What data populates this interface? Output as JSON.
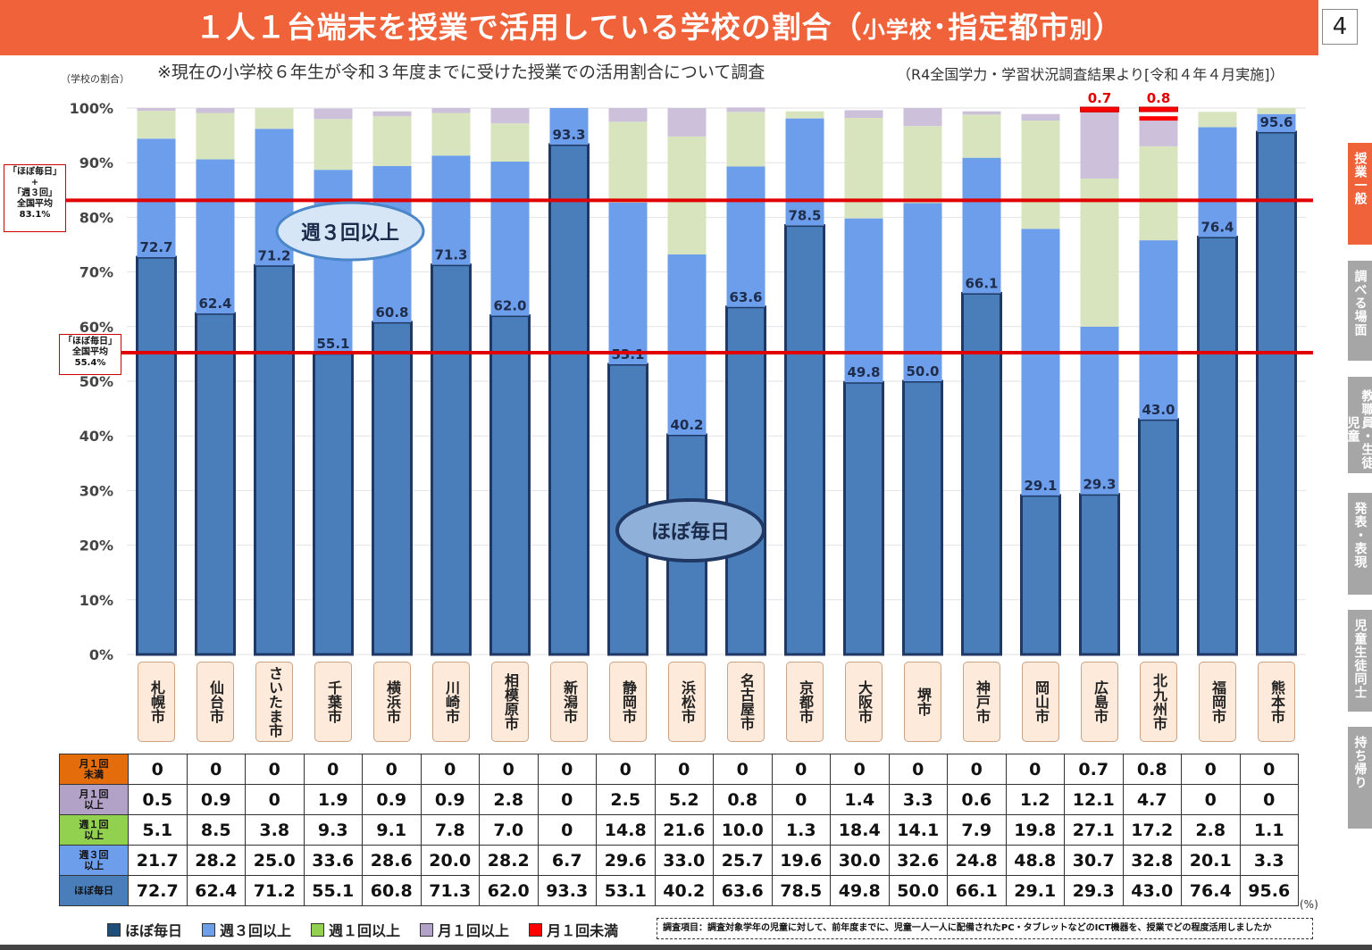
{
  "header": {
    "title_main": "１人１台端末を授業で活用している学校の割合（",
    "title_small1": "小学校",
    "title_mid": "･指定都市",
    "title_small2": "別",
    "title_end": "）",
    "page_number": "4"
  },
  "subtitle": "※現在の小学校６年生が令和３年度までに受けた授業での活用割合について調査",
  "source": "（R4全国学力・学習状況調査結果より[令和４年４月実施]）",
  "averages": {
    "combined": {
      "l1": "「ほぼ毎日」",
      "l2": "+",
      "l3": "「週３回」",
      "l4": "全国平均",
      "l5": "83.1%",
      "value": 83.1
    },
    "daily": {
      "l1": "「ほぼ毎日」",
      "l2": "全国平均",
      "l3": "55.4%",
      "value": 55.4
    }
  },
  "callouts": {
    "weekly3": "週３回以上",
    "daily": "ほぼ毎日"
  },
  "side_tabs": [
    {
      "label": "授業一般",
      "active": true
    },
    {
      "label": "調べる場面",
      "active": false
    },
    {
      "label": "教職員・生徒児童",
      "active": false
    },
    {
      "label": "発表・表現",
      "active": false
    },
    {
      "label": "児童生徒同士",
      "active": false
    },
    {
      "label": "持ち帰り",
      "active": false
    }
  ],
  "chart_data": {
    "type": "bar",
    "stacked": true,
    "ylabel": "（学校の割合）",
    "ylim": [
      0,
      100
    ],
    "yticks": [
      "0%",
      "10%",
      "20%",
      "30%",
      "40%",
      "50%",
      "60%",
      "70%",
      "80%",
      "90%",
      "100%"
    ],
    "categories": [
      "札幌市",
      "仙台市",
      "さいたま市",
      "千葉市",
      "横浜市",
      "川崎市",
      "相模原市",
      "新潟市",
      "静岡市",
      "浜松市",
      "名古屋市",
      "京都市",
      "大阪市",
      "堺市",
      "神戸市",
      "岡山市",
      "広島市",
      "北九州市",
      "福岡市",
      "熊本市"
    ],
    "series": [
      {
        "name": "ほぼ毎日",
        "color": "#4a7ebb",
        "values": [
          72.7,
          62.4,
          71.2,
          55.1,
          60.8,
          71.3,
          62.0,
          93.3,
          53.1,
          40.2,
          63.6,
          78.5,
          49.8,
          50.0,
          66.1,
          29.1,
          29.3,
          43.0,
          76.4,
          95.6
        ]
      },
      {
        "name": "週３回以上",
        "color": "#6d9eeb",
        "values": [
          21.7,
          28.2,
          25.0,
          33.6,
          28.6,
          20.0,
          28.2,
          6.7,
          29.6,
          33.0,
          25.7,
          19.6,
          30.0,
          32.6,
          24.8,
          48.8,
          30.7,
          32.8,
          20.1,
          3.3
        ]
      },
      {
        "name": "週１回以上",
        "color": "#d7e4bd",
        "values": [
          5.1,
          8.5,
          3.8,
          9.3,
          9.1,
          7.8,
          7.0,
          0,
          14.8,
          21.6,
          10.0,
          1.3,
          18.4,
          14.1,
          7.9,
          19.8,
          27.1,
          17.2,
          2.8,
          1.1
        ]
      },
      {
        "name": "月１回以上",
        "color": "#ccc0da",
        "values": [
          0.5,
          0.9,
          0,
          1.9,
          0.9,
          0.9,
          2.8,
          0,
          2.5,
          5.2,
          0.8,
          0,
          1.4,
          3.3,
          0.6,
          1.2,
          12.1,
          4.7,
          0,
          0
        ]
      },
      {
        "name": "月１回未満",
        "color": "#ff0000",
        "values": [
          0,
          0,
          0,
          0,
          0,
          0,
          0,
          0,
          0,
          0,
          0,
          0,
          0,
          0,
          0,
          0,
          0.7,
          0.8,
          0,
          0
        ]
      }
    ],
    "top_labels": {
      "16": "0.7",
      "17": "0.8"
    }
  },
  "table": {
    "row_headers": [
      {
        "l1": "月１回",
        "l2": "未満",
        "color": "#e46c0a"
      },
      {
        "l1": "月１回",
        "l2": "以上",
        "color": "#b3a2c7"
      },
      {
        "l1": "週１回",
        "l2": "以上",
        "color": "#92d050"
      },
      {
        "l1": "週３回",
        "l2": "以上",
        "color": "#6d9eeb"
      },
      {
        "l1": "ほぼ毎日",
        "l2": "",
        "color": "#4a7ebb"
      }
    ],
    "rows": [
      [
        "0",
        "0",
        "0",
        "0",
        "0",
        "0",
        "0",
        "0",
        "0",
        "0",
        "0",
        "0",
        "0",
        "0",
        "0",
        "0",
        "0.7",
        "0.8",
        "0",
        "0"
      ],
      [
        "0.5",
        "0.9",
        "0",
        "1.9",
        "0.9",
        "0.9",
        "2.8",
        "0",
        "2.5",
        "5.2",
        "0.8",
        "0",
        "1.4",
        "3.3",
        "0.6",
        "1.2",
        "12.1",
        "4.7",
        "0",
        "0"
      ],
      [
        "5.1",
        "8.5",
        "3.8",
        "9.3",
        "9.1",
        "7.8",
        "7.0",
        "0",
        "14.8",
        "21.6",
        "10.0",
        "1.3",
        "18.4",
        "14.1",
        "7.9",
        "19.8",
        "27.1",
        "17.2",
        "2.8",
        "1.1"
      ],
      [
        "21.7",
        "28.2",
        "25.0",
        "33.6",
        "28.6",
        "20.0",
        "28.2",
        "6.7",
        "29.6",
        "33.0",
        "25.7",
        "19.6",
        "30.0",
        "32.6",
        "24.8",
        "48.8",
        "30.7",
        "32.8",
        "20.1",
        "3.3"
      ],
      [
        "72.7",
        "62.4",
        "71.2",
        "55.1",
        "60.8",
        "71.3",
        "62.0",
        "93.3",
        "53.1",
        "40.2",
        "63.6",
        "78.5",
        "49.8",
        "50.0",
        "66.1",
        "29.1",
        "29.3",
        "43.0",
        "76.4",
        "95.6"
      ]
    ],
    "unit": "(%)"
  },
  "legend": [
    {
      "label": "ほぼ毎日",
      "color": "#1f4e79"
    },
    {
      "label": "週３回以上",
      "color": "#6d9eeb"
    },
    {
      "label": "週１回以上",
      "color": "#92d050"
    },
    {
      "label": "月１回以上",
      "color": "#b3a2c7"
    },
    {
      "label": "月１回未満",
      "color": "#ff0000"
    }
  ],
  "note": "調査項目：調査対象学年の児童に対して、前年度までに、児童一人一人に配備されたPC・タブレットなどのICT機器を、授業でどの程度活用しましたか"
}
